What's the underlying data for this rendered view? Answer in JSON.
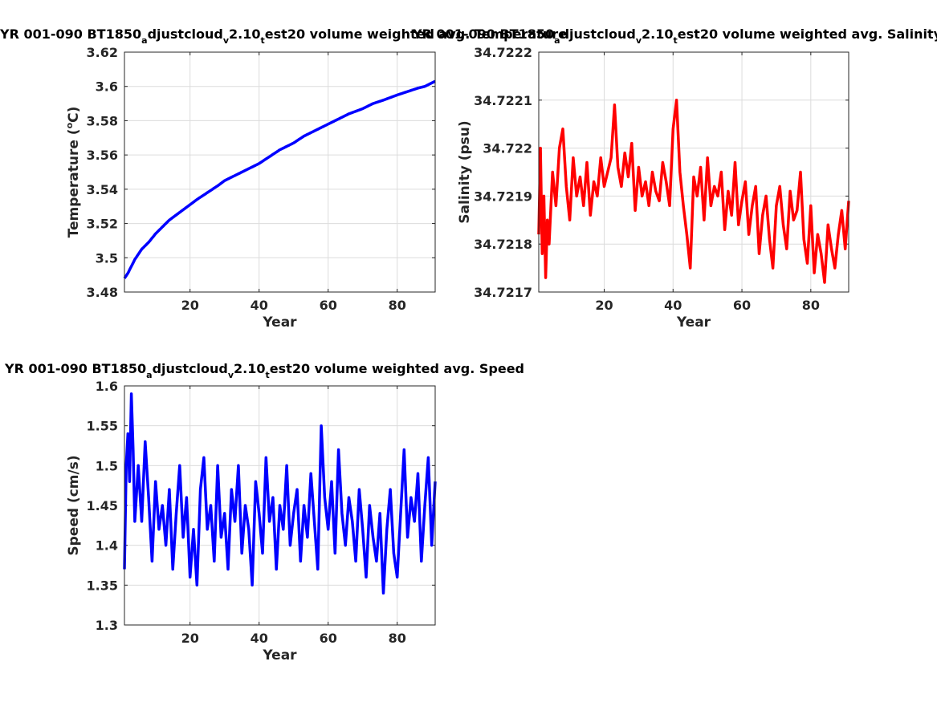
{
  "chart_data": [
    {
      "type": "line",
      "title_parts": [
        "YR 001-090 BT1850",
        "a",
        "djustcloud",
        "v",
        "2.10",
        "t",
        "est20 volume weighted avg. Temperature"
      ],
      "xlabel": "Year",
      "ylabel_parts": [
        "Temperature (",
        "o",
        "C)"
      ],
      "xlim": [
        1,
        91
      ],
      "ylim": [
        3.48,
        3.62
      ],
      "xticks": [
        20,
        40,
        60,
        80
      ],
      "yticks": [
        3.48,
        3.5,
        3.52,
        3.54,
        3.56,
        3.58,
        3.6,
        3.62
      ],
      "ytick_labels": [
        "3.48",
        "3.5",
        "3.52",
        "3.54",
        "3.56",
        "3.58",
        "3.6",
        "3.62"
      ],
      "grid": true,
      "color": "#0000ff",
      "series": [
        {
          "x": [
            1,
            2,
            3,
            4,
            5,
            6,
            8,
            10,
            12,
            14,
            16,
            18,
            20,
            22,
            25,
            28,
            30,
            33,
            36,
            40,
            43,
            46,
            50,
            53,
            56,
            60,
            63,
            66,
            70,
            73,
            76,
            80,
            83,
            86,
            88,
            90,
            91
          ],
          "y": [
            3.488,
            3.491,
            3.495,
            3.499,
            3.502,
            3.505,
            3.509,
            3.514,
            3.518,
            3.522,
            3.525,
            3.528,
            3.531,
            3.534,
            3.538,
            3.542,
            3.545,
            3.548,
            3.551,
            3.555,
            3.559,
            3.563,
            3.567,
            3.571,
            3.574,
            3.578,
            3.581,
            3.584,
            3.587,
            3.59,
            3.592,
            3.595,
            3.597,
            3.599,
            3.6,
            3.602,
            3.603
          ]
        }
      ]
    },
    {
      "type": "line",
      "title_parts": [
        "YR 001-090 BT1850",
        "a",
        "djustcloud",
        "v",
        "2.10",
        "t",
        "est20 volume weighted avg. Salinity"
      ],
      "xlabel": "Year",
      "ylabel": "Salinity (psu)",
      "xlim": [
        1,
        91
      ],
      "ylim": [
        34.7217,
        34.7222
      ],
      "xticks": [
        20,
        40,
        60,
        80
      ],
      "yticks": [
        34.7217,
        34.7218,
        34.7219,
        34.722,
        34.7221,
        34.7222
      ],
      "ytick_labels": [
        "34.7217",
        "34.7218",
        "34.7219",
        "34.722",
        "34.7221",
        "34.7222"
      ],
      "grid": true,
      "color": "#ff0000",
      "series": [
        {
          "x": [
            1,
            1.5,
            2,
            2.5,
            3,
            3.5,
            4,
            5,
            6,
            7,
            8,
            9,
            10,
            11,
            12,
            13,
            14,
            15,
            16,
            17,
            18,
            19,
            20,
            21,
            22,
            23,
            24,
            25,
            26,
            27,
            28,
            29,
            30,
            31,
            32,
            33,
            34,
            35,
            36,
            37,
            38,
            39,
            40,
            41,
            42,
            43,
            44,
            45,
            46,
            47,
            48,
            49,
            50,
            51,
            52,
            53,
            54,
            55,
            56,
            57,
            58,
            59,
            60,
            61,
            62,
            63,
            64,
            65,
            66,
            67,
            68,
            69,
            70,
            71,
            72,
            73,
            74,
            75,
            76,
            77,
            78,
            79,
            80,
            81,
            82,
            83,
            84,
            85,
            86,
            87,
            88,
            89,
            90,
            91
          ],
          "y": [
            34.72182,
            34.722,
            34.72178,
            34.7219,
            34.72173,
            34.72185,
            34.7218,
            34.72195,
            34.72188,
            34.722,
            34.72204,
            34.72192,
            34.72185,
            34.72198,
            34.7219,
            34.72194,
            34.72188,
            34.72197,
            34.72186,
            34.72193,
            34.7219,
            34.72198,
            34.72192,
            34.72195,
            34.72198,
            34.72209,
            34.72196,
            34.72192,
            34.72199,
            34.72194,
            34.72201,
            34.72187,
            34.72196,
            34.7219,
            34.72193,
            34.72188,
            34.72195,
            34.72191,
            34.72189,
            34.72197,
            34.72193,
            34.72188,
            34.72204,
            34.7221,
            34.72195,
            34.72188,
            34.72182,
            34.72175,
            34.72194,
            34.7219,
            34.72196,
            34.72185,
            34.72198,
            34.72188,
            34.72192,
            34.7219,
            34.72195,
            34.72183,
            34.72191,
            34.72186,
            34.72197,
            34.72184,
            34.72189,
            34.72193,
            34.72182,
            34.72188,
            34.72192,
            34.72178,
            34.72186,
            34.7219,
            34.72181,
            34.72175,
            34.72188,
            34.72192,
            34.72184,
            34.72179,
            34.72191,
            34.72185,
            34.72187,
            34.72195,
            34.72181,
            34.72176,
            34.72188,
            34.72174,
            34.72182,
            34.72178,
            34.72172,
            34.72184,
            34.72179,
            34.72175,
            34.72182,
            34.72187,
            34.72179,
            34.72189
          ]
        }
      ]
    },
    {
      "type": "line",
      "title_parts": [
        "YR 001-090 BT1850",
        "a",
        "djustcloud",
        "v",
        "2.10",
        "t",
        "est20 volume weighted avg. Speed"
      ],
      "xlabel": "Year",
      "ylabel": "Speed (cm/s)",
      "xlim": [
        1,
        91
      ],
      "ylim": [
        1.3,
        1.6
      ],
      "xticks": [
        20,
        40,
        60,
        80
      ],
      "yticks": [
        1.3,
        1.35,
        1.4,
        1.45,
        1.5,
        1.55,
        1.6
      ],
      "ytick_labels": [
        "1.3",
        "1.35",
        "1.4",
        "1.45",
        "1.5",
        "1.55",
        "1.6"
      ],
      "grid": true,
      "color": "#0000ff",
      "series": [
        {
          "x": [
            1,
            1.5,
            2,
            2.5,
            3,
            3.5,
            4,
            5,
            6,
            7,
            8,
            9,
            10,
            11,
            12,
            13,
            14,
            15,
            16,
            17,
            18,
            19,
            20,
            21,
            22,
            23,
            24,
            25,
            26,
            27,
            28,
            29,
            30,
            31,
            32,
            33,
            34,
            35,
            36,
            37,
            38,
            39,
            40,
            41,
            42,
            43,
            44,
            45,
            46,
            47,
            48,
            49,
            50,
            51,
            52,
            53,
            54,
            55,
            56,
            57,
            58,
            59,
            60,
            61,
            62,
            63,
            64,
            65,
            66,
            67,
            68,
            69,
            70,
            71,
            72,
            73,
            74,
            75,
            76,
            77,
            78,
            79,
            80,
            81,
            82,
            83,
            84,
            85,
            86,
            87,
            88,
            89,
            90,
            91
          ],
          "y": [
            1.37,
            1.5,
            1.54,
            1.48,
            1.59,
            1.52,
            1.43,
            1.5,
            1.43,
            1.53,
            1.46,
            1.38,
            1.48,
            1.42,
            1.45,
            1.4,
            1.47,
            1.37,
            1.44,
            1.5,
            1.41,
            1.46,
            1.36,
            1.42,
            1.35,
            1.47,
            1.51,
            1.42,
            1.45,
            1.38,
            1.5,
            1.41,
            1.44,
            1.37,
            1.47,
            1.43,
            1.5,
            1.39,
            1.45,
            1.42,
            1.35,
            1.48,
            1.44,
            1.39,
            1.51,
            1.43,
            1.46,
            1.37,
            1.45,
            1.42,
            1.5,
            1.4,
            1.44,
            1.47,
            1.38,
            1.45,
            1.41,
            1.49,
            1.43,
            1.37,
            1.55,
            1.46,
            1.42,
            1.48,
            1.39,
            1.52,
            1.44,
            1.4,
            1.46,
            1.43,
            1.38,
            1.47,
            1.42,
            1.36,
            1.45,
            1.41,
            1.38,
            1.44,
            1.34,
            1.42,
            1.47,
            1.39,
            1.36,
            1.44,
            1.52,
            1.41,
            1.46,
            1.43,
            1.49,
            1.38,
            1.45,
            1.51,
            1.4,
            1.48
          ]
        }
      ]
    }
  ]
}
